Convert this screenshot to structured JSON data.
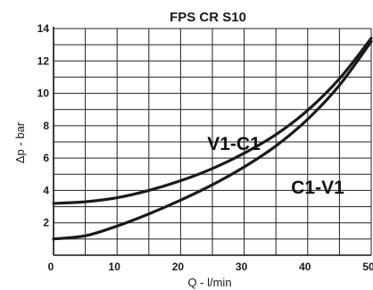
{
  "chart_data": {
    "type": "line",
    "title": "FPS CR S10",
    "xlabel": "Q - l/min",
    "ylabel": "Δp - bar",
    "xlim": [
      0,
      50
    ],
    "ylim": [
      0,
      14
    ],
    "x_ticks": [
      "0",
      "10",
      "20",
      "30",
      "40",
      "50"
    ],
    "y_ticks": [
      "2",
      "4",
      "6",
      "8",
      "10",
      "12",
      "14"
    ],
    "grid": true,
    "series": [
      {
        "name": "V1-C1",
        "x": [
          0,
          5,
          10,
          15,
          20,
          25,
          30,
          35,
          40,
          45,
          50
        ],
        "y": [
          3.2,
          3.3,
          3.55,
          4.0,
          4.6,
          5.35,
          6.3,
          7.45,
          8.95,
          10.9,
          13.4
        ]
      },
      {
        "name": "C1-V1",
        "x": [
          0,
          5,
          10,
          15,
          20,
          25,
          30,
          35,
          40,
          45,
          50
        ],
        "y": [
          1.0,
          1.2,
          1.8,
          2.55,
          3.4,
          4.35,
          5.45,
          6.75,
          8.4,
          10.5,
          13.2
        ]
      }
    ]
  }
}
